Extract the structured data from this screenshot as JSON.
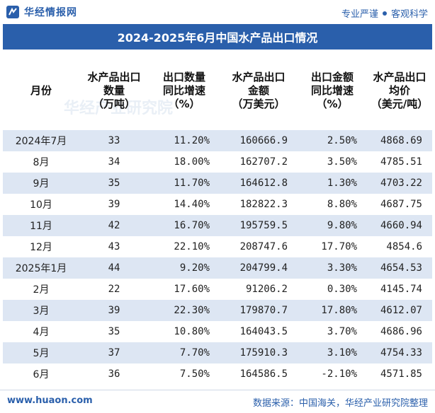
{
  "header": {
    "logo_text": "华经情报网",
    "tagline_left": "专业严谨",
    "tagline_right": "客观科学"
  },
  "title": "2024-2025年6月中国水产品出口情况",
  "table": {
    "headers": [
      [
        "月份"
      ],
      [
        "水产品出口",
        "数量",
        "（万吨）"
      ],
      [
        "出口数量",
        "同比增速",
        "（%）"
      ],
      [
        "水产品出口",
        "金额",
        "（万美元）"
      ],
      [
        "出口金额",
        "同比增速",
        "（%）"
      ],
      [
        "水产品出口",
        "均价",
        "（美元/吨）"
      ]
    ],
    "rows": [
      [
        "2024年7月",
        "33",
        "11.20%",
        "160666.9",
        "2.50%",
        "4868.69"
      ],
      [
        "8月",
        "34",
        "18.00%",
        "162707.2",
        "3.50%",
        "4785.51"
      ],
      [
        "9月",
        "35",
        "11.70%",
        "164612.8",
        "1.30%",
        "4703.22"
      ],
      [
        "10月",
        "39",
        "14.40%",
        "182822.3",
        "8.80%",
        "4687.75"
      ],
      [
        "11月",
        "42",
        "16.70%",
        "195759.5",
        "9.80%",
        "4660.94"
      ],
      [
        "12月",
        "43",
        "22.10%",
        "208747.6",
        "17.70%",
        "4854.6"
      ],
      [
        "2025年1月",
        "44",
        "9.20%",
        "204799.4",
        "3.30%",
        "4654.53"
      ],
      [
        "2月",
        "22",
        "17.60%",
        "91206.2",
        "0.30%",
        "4145.74"
      ],
      [
        "3月",
        "39",
        "22.30%",
        "179870.7",
        "17.80%",
        "4612.07"
      ],
      [
        "4月",
        "35",
        "10.80%",
        "164043.5",
        "3.70%",
        "4686.96"
      ],
      [
        "5月",
        "37",
        "7.70%",
        "175910.3",
        "3.10%",
        "4754.33"
      ],
      [
        "6月",
        "36",
        "7.50%",
        "164586.5",
        "-2.10%",
        "4571.85"
      ]
    ]
  },
  "footer": {
    "site": "www.huaon.com",
    "source": "数据来源：中国海关，华经产业研究院整理"
  },
  "watermark": "华经产业研究院",
  "colors": {
    "brand": "#2a5fab",
    "stripe": "#dde6f3"
  }
}
